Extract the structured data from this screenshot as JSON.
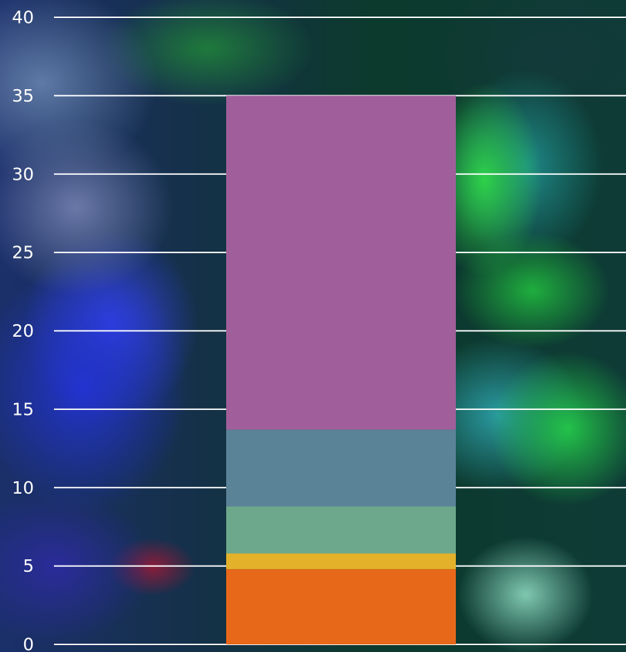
{
  "chart_data": {
    "type": "bar",
    "stacked": true,
    "categories": [
      ""
    ],
    "series": [
      {
        "values": [
          4.8
        ],
        "color": "#e8681a"
      },
      {
        "values": [
          1.0
        ],
        "color": "#e3b22a"
      },
      {
        "values": [
          3.0
        ],
        "color": "#6ea88c"
      },
      {
        "values": [
          4.9
        ],
        "color": "#5a8398"
      },
      {
        "values": [
          21.3
        ],
        "color": "#a05f9a"
      }
    ],
    "yticks": [
      "0",
      "5",
      "10",
      "15",
      "20",
      "25",
      "30",
      "35",
      "40"
    ],
    "ylim": [
      0,
      40
    ],
    "grid": true,
    "legend": "none",
    "gridline_color": "#ffffff"
  }
}
